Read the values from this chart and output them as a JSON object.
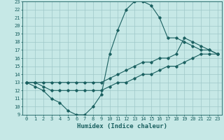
{
  "xlabel": "Humidex (Indice chaleur)",
  "ylabel": "",
  "xlim": [
    -0.5,
    23.5
  ],
  "ylim": [
    9,
    23
  ],
  "xticks": [
    0,
    1,
    2,
    3,
    4,
    5,
    6,
    7,
    8,
    9,
    10,
    11,
    12,
    13,
    14,
    15,
    16,
    17,
    18,
    19,
    20,
    21,
    22,
    23
  ],
  "yticks": [
    9,
    10,
    11,
    12,
    13,
    14,
    15,
    16,
    17,
    18,
    19,
    20,
    21,
    22,
    23
  ],
  "background_color": "#c6e8e6",
  "line_color": "#1a6060",
  "grid_color": "#9ec8c8",
  "line1_x": [
    0,
    1,
    2,
    3,
    4,
    5,
    6,
    7,
    8,
    9,
    10,
    11,
    12,
    13,
    14,
    15,
    16,
    17,
    18,
    19,
    20,
    21,
    22,
    23
  ],
  "line1_y": [
    13,
    12.5,
    12,
    11,
    10.5,
    9.5,
    9,
    9,
    10,
    11.5,
    16.5,
    19.5,
    22,
    23,
    23,
    22.5,
    21,
    18.5,
    18.5,
    18,
    17.5,
    17,
    17,
    16.5
  ],
  "line2_x": [
    0,
    1,
    2,
    3,
    4,
    5,
    6,
    7,
    8,
    9,
    10,
    11,
    12,
    13,
    14,
    15,
    16,
    17,
    18,
    19,
    20,
    21,
    22,
    23
  ],
  "line2_y": [
    13,
    13,
    13,
    13,
    13,
    13,
    13,
    13,
    13,
    13,
    13.5,
    14,
    14.5,
    15,
    15.5,
    15.5,
    16,
    16,
    16.5,
    18.5,
    18,
    17.5,
    17,
    16.5
  ],
  "line3_x": [
    0,
    1,
    2,
    3,
    4,
    5,
    6,
    7,
    8,
    9,
    10,
    11,
    12,
    13,
    14,
    15,
    16,
    17,
    18,
    19,
    20,
    21,
    22,
    23
  ],
  "line3_y": [
    13,
    13,
    12.5,
    12,
    12,
    12,
    12,
    12,
    12,
    12,
    12.5,
    13,
    13,
    13.5,
    14,
    14,
    14.5,
    15,
    15,
    15.5,
    16,
    16.5,
    16.5,
    16.5
  ],
  "tick_fontsize": 5.0,
  "xlabel_fontsize": 6.5
}
